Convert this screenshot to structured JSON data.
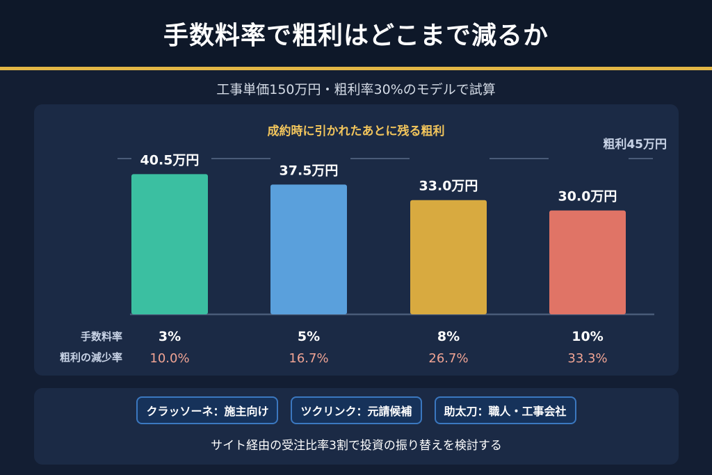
{
  "title": "手数料率で粗利はどこまで減るか",
  "subtitle": "工事単価150万円・粗利率30%のモデルで試算",
  "chart_data": {
    "type": "bar",
    "title": "成約時に引かれたあとに残る粗利",
    "reference_label": "粗利45万円",
    "reference_value": 45,
    "ylim": [
      0,
      45
    ],
    "categories": [
      "3%",
      "5%",
      "8%",
      "10%"
    ],
    "values": [
      40.5,
      37.5,
      33.0,
      30.0
    ],
    "value_labels": [
      "40.5万円",
      "37.5万円",
      "33.0万円",
      "30.0万円"
    ],
    "reduction_labels": [
      "10.0%",
      "16.7%",
      "26.7%",
      "33.3%"
    ],
    "row_labels": {
      "fee_rate": "手数料率",
      "reduction": "粗利の減少率"
    },
    "colors": [
      "#3bbfa1",
      "#5aa0dc",
      "#d8aa40",
      "#e07466"
    ]
  },
  "tags": [
    "クラッソーネ：施主向け",
    "ツクリンク：元請候補",
    "助太刀：職人・工事会社"
  ],
  "footer_note": "サイト経由の受注比率3割で投資の振り替えを検討する",
  "colors": {
    "accent_gold": "#e2b645",
    "reduction_text": "#f0a494",
    "panel": "#1b2a45"
  }
}
